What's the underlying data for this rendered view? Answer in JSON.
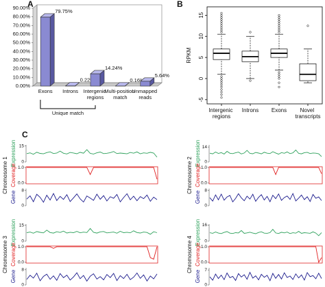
{
  "chart_data": [
    {
      "type": "bar3d",
      "panel_label": "A",
      "categories": [
        "Exons",
        "Introns",
        "Intergenic regions",
        "Multi-position match",
        "Unmapped reads"
      ],
      "values": [
        79.75,
        0.22,
        14.24,
        0.16,
        5.64
      ],
      "value_labels": [
        "79.75%",
        "0.22%",
        "14.24%",
        "0.16%",
        "5.64%"
      ],
      "color": "#8a8ad2",
      "ylim": [
        0,
        90
      ],
      "yticks": [
        {
          "value": 0,
          "label": "0.00%"
        },
        {
          "value": 10,
          "label": "10.00%"
        },
        {
          "value": 20,
          "label": "20.00%"
        },
        {
          "value": 30,
          "label": "30.00%"
        },
        {
          "value": 40,
          "label": "40.00%"
        },
        {
          "value": 50,
          "label": "50.00%"
        },
        {
          "value": 60,
          "label": "60.00%"
        },
        {
          "value": 70,
          "label": "70.00%"
        },
        {
          "value": 80,
          "label": "80.00%"
        },
        {
          "value": 90,
          "label": "90.00%"
        }
      ],
      "annotation": "Unique match"
    },
    {
      "type": "box",
      "panel_label": "B",
      "ylabel": "RPKM",
      "categories": [
        "Intergenic regions",
        "Introns",
        "Exons",
        "Novel transcripts"
      ],
      "boxes": [
        {
          "min": 1,
          "q1": 4.5,
          "median": 6,
          "q3": 7,
          "max": 10.5,
          "outliers": [
            -4.5,
            -3.8,
            -3.2,
            -2.6,
            -2,
            -1.5,
            -1,
            -0.5,
            0,
            0.5,
            11,
            11.5,
            12,
            12.5,
            13,
            13.5,
            14,
            14.5,
            15,
            15.5
          ]
        },
        {
          "min": 0,
          "q1": 4,
          "median": 5.2,
          "q3": 6.5,
          "max": 10,
          "outliers": [
            -0.5,
            11
          ]
        },
        {
          "min": 2,
          "q1": 5,
          "median": 6,
          "q3": 7,
          "max": 10.5,
          "outliers": [
            -2,
            -1,
            0,
            0.5,
            1,
            1.5,
            11,
            11.5,
            12,
            12.5,
            13,
            13.5,
            14,
            14.5,
            15
          ]
        },
        {
          "min": -1,
          "q1": -0.5,
          "median": 1,
          "q3": 3.5,
          "max": 7,
          "outliers": [
            12.5
          ]
        }
      ],
      "ylim": [
        -6,
        17
      ],
      "yticks": [
        -5,
        0,
        5,
        10,
        15
      ]
    },
    {
      "type": "tracks",
      "panel_label": "C",
      "title": "Chromosome 1",
      "series": [
        {
          "name": "Expression",
          "color": "#2ca05a",
          "ylim": [
            0,
            16
          ],
          "yticks": [
            15,
            0
          ],
          "values": [
            7.8,
            8.5,
            7.2,
            9.1,
            8.0,
            7.6,
            8.8,
            9.5,
            7.9,
            8.3,
            10.2,
            8.1,
            7.5,
            8.9,
            8.4,
            7.7,
            9.0,
            8.2,
            11.5,
            8.0,
            7.4,
            8.6,
            9.3,
            7.8,
            8.1,
            8.7,
            9.8,
            7.9,
            8.3,
            8.0,
            7.6,
            8.9,
            8.2,
            9.4,
            7.7,
            8.5,
            8.1,
            9.0,
            8.3,
            4.5
          ]
        },
        {
          "name": "Coverage",
          "color": "#e02020",
          "ylim": [
            -0.05,
            1.05
          ],
          "yticks": [
            {
              "value": 1,
              "label": "1.0"
            },
            {
              "value": 0,
              "label": "0.0"
            }
          ],
          "values": [
            1,
            1,
            1,
            1,
            1,
            1,
            1,
            1,
            1,
            1,
            1,
            1,
            1,
            1,
            1,
            1,
            1,
            1,
            1,
            0.55,
            1,
            1,
            1,
            1,
            1,
            1,
            1,
            1,
            1,
            1,
            1,
            1,
            1,
            1,
            1,
            1,
            1,
            1,
            1,
            0.25
          ]
        },
        {
          "name": "Gene",
          "color": "#1a1a8c",
          "ylim": [
            0,
            9
          ],
          "yticks": [
            8,
            0
          ],
          "values": [
            3.5,
            5.2,
            2.1,
            6.0,
            4.4,
            1.8,
            5.5,
            3.0,
            6.4,
            2.7,
            4.9,
            3.3,
            5.8,
            2.2,
            4.1,
            6.2,
            3.6,
            1.9,
            5.1,
            4.0,
            2.8,
            6.1,
            3.4,
            5.3,
            2.5,
            4.7,
            3.9,
            5.9,
            2.0,
            4.3,
            6.3,
            3.1,
            5.0,
            2.6,
            4.8,
            3.7,
            5.6,
            2.3,
            4.5,
            3.2
          ]
        }
      ]
    },
    {
      "type": "tracks",
      "title": "Chromosome 2",
      "series": [
        {
          "name": "Expression",
          "color": "#2ca05a",
          "ylim": [
            0,
            16
          ],
          "yticks": [
            14,
            0
          ],
          "values": [
            8.2,
            7.6,
            9.3,
            8.0,
            8.7,
            7.4,
            9.9,
            8.1,
            7.8,
            8.6,
            9.2,
            7.5,
            8.4,
            10.8,
            8.0,
            7.7,
            8.9,
            8.3,
            7.6,
            9.1,
            8.2,
            7.9,
            9.6,
            8.4,
            7.3,
            8.8,
            8.1,
            9.4,
            7.8,
            8.5,
            11.2,
            8.0,
            7.6,
            8.7,
            9.0,
            7.9,
            8.4,
            8.2,
            7.7,
            5.0
          ]
        },
        {
          "name": "Coverage",
          "color": "#e02020",
          "ylim": [
            -0.05,
            1.05
          ],
          "yticks": [
            {
              "value": 1,
              "label": "1.0"
            },
            {
              "value": 0,
              "label": "0.0"
            }
          ],
          "values": [
            1,
            1,
            1,
            1,
            1,
            1,
            1,
            1,
            1,
            1,
            1,
            1,
            1,
            1,
            1,
            1,
            1,
            1,
            1,
            1,
            1,
            1,
            1,
            0.55,
            1,
            1,
            1,
            1,
            1,
            1,
            1,
            1,
            1,
            1,
            1,
            1,
            1,
            1,
            1,
            0.6
          ]
        },
        {
          "name": "Gene",
          "color": "#1a1a8c",
          "ylim": [
            0,
            9
          ],
          "yticks": [
            8,
            0
          ],
          "values": [
            4.2,
            2.4,
            5.7,
            3.1,
            6.1,
            2.9,
            4.6,
            5.4,
            2.0,
            3.8,
            6.3,
            4.1,
            2.6,
            5.0,
            3.5,
            6.0,
            2.3,
            4.4,
            5.8,
            3.0,
            4.9,
            2.1,
            5.5,
            3.7,
            6.2,
            2.8,
            4.3,
            5.1,
            3.3,
            6.4,
            2.5,
            4.0,
            5.6,
            3.2,
            4.7,
            2.2,
            5.9,
            3.9,
            4.6,
            2.7
          ]
        }
      ]
    },
    {
      "type": "tracks",
      "title": "Chromosome 3",
      "series": [
        {
          "name": "Expression",
          "color": "#2ca05a",
          "ylim": [
            0,
            16
          ],
          "yticks": [
            15,
            0
          ],
          "values": [
            8.0,
            8.6,
            7.5,
            9.0,
            8.3,
            7.8,
            10.4,
            8.1,
            7.6,
            8.9,
            8.2,
            9.5,
            7.7,
            8.4,
            8.0,
            9.2,
            7.9,
            8.5,
            8.1,
            12.0,
            8.3,
            7.6,
            8.8,
            9.1,
            7.8,
            8.2,
            8.6,
            7.5,
            9.3,
            8.0,
            8.4,
            7.9,
            9.7,
            8.1,
            7.7,
            8.6,
            8.2,
            6.5,
            8.9,
            8.0
          ]
        },
        {
          "name": "Coverage",
          "color": "#e02020",
          "ylim": [
            -0.05,
            1.05
          ],
          "yticks": [
            {
              "value": 1,
              "label": "1.0"
            },
            {
              "value": 0,
              "label": "0.0"
            }
          ],
          "values": [
            1,
            1,
            1,
            1,
            1,
            1,
            1,
            1,
            0.9,
            1,
            1,
            1,
            1,
            1,
            1,
            1,
            1,
            1,
            1,
            1,
            1,
            1,
            1,
            1,
            1,
            1,
            1,
            1,
            1,
            1,
            1,
            1,
            1,
            1,
            1,
            1,
            1,
            0.3,
            0.2,
            1
          ]
        },
        {
          "name": "Gene",
          "color": "#1a1a8c",
          "ylim": [
            0,
            9
          ],
          "yticks": [
            8,
            0
          ],
          "values": [
            2.9,
            5.1,
            3.6,
            6.2,
            2.2,
            4.5,
            5.7,
            3.0,
            4.8,
            2.4,
            6.0,
            3.8,
            5.2,
            2.6,
            4.2,
            6.4,
            3.3,
            5.0,
            2.0,
            4.6,
            5.9,
            3.1,
            4.4,
            2.7,
            5.5,
            3.9,
            6.1,
            2.3,
            4.9,
            3.4,
            5.6,
            2.8,
            4.1,
            6.3,
            3.5,
            5.3,
            2.1,
            4.7,
            3.2,
            5.8
          ]
        }
      ]
    },
    {
      "type": "tracks",
      "title": "Chromosome 4",
      "series": [
        {
          "name": "Expression",
          "color": "#2ca05a",
          "ylim": [
            0,
            17
          ],
          "yticks": [
            16,
            0
          ],
          "values": [
            8.4,
            7.9,
            9.2,
            8.1,
            7.6,
            8.8,
            9.6,
            8.0,
            7.7,
            8.5,
            8.2,
            10.6,
            7.8,
            8.3,
            9.0,
            8.1,
            7.5,
            8.7,
            9.4,
            8.0,
            7.9,
            8.6,
            11.8,
            8.2,
            7.7,
            8.9,
            8.3,
            9.1,
            7.6,
            8.4,
            8.0,
            9.8,
            7.8,
            8.5,
            8.2,
            7.9,
            9.3,
            8.1,
            5.5,
            8.6
          ]
        },
        {
          "name": "Coverage",
          "color": "#e02020",
          "ylim": [
            -0.05,
            1.05
          ],
          "yticks": [
            {
              "value": 1,
              "label": "1.0"
            },
            {
              "value": 0,
              "label": "0.0"
            }
          ],
          "values": [
            1,
            1,
            1,
            1,
            1,
            1,
            1,
            1,
            1,
            1,
            1,
            1,
            1,
            1,
            1,
            1,
            1,
            1,
            1,
            1,
            1,
            1,
            1,
            1,
            1,
            1,
            1,
            1,
            1,
            1,
            1,
            1,
            1,
            1,
            1,
            1,
            1,
            1,
            0,
            0.3
          ]
        },
        {
          "name": "Gene",
          "color": "#1a1a8c",
          "ylim": [
            0,
            8
          ],
          "yticks": [
            7,
            0
          ],
          "values": [
            3.8,
            2.2,
            5.1,
            3.0,
            4.6,
            2.5,
            5.6,
            3.4,
            4.0,
            2.1,
            5.3,
            3.7,
            4.8,
            2.7,
            5.9,
            3.2,
            4.3,
            2.4,
            5.0,
            3.6,
            4.5,
            2.0,
            5.4,
            3.1,
            4.9,
            2.8,
            5.7,
            3.5,
            4.2,
            2.6,
            5.2,
            3.3,
            4.7,
            2.3,
            5.8,
            3.9,
            4.4,
            2.9,
            5.5,
            3.0
          ]
        }
      ]
    }
  ]
}
